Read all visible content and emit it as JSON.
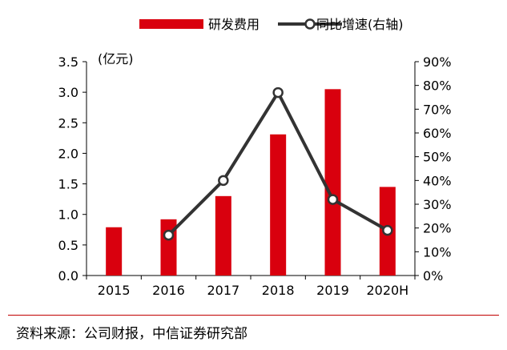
{
  "chart_data": {
    "type": "bar",
    "categories": [
      "2015",
      "2016",
      "2017",
      "2018",
      "2019",
      "2020H"
    ],
    "series": [
      {
        "name": "研发费用",
        "type": "bar",
        "axis": "left",
        "color": "#d9000e",
        "values": [
          0.79,
          0.92,
          1.3,
          2.31,
          3.05,
          1.45
        ]
      },
      {
        "name": "同比增速(右轴)",
        "type": "line",
        "axis": "right",
        "color": "#333333",
        "marker": "open-circle",
        "values": [
          null,
          17.0,
          40.0,
          77.0,
          32.0,
          19.0
        ]
      }
    ],
    "left_axis": {
      "label": "(亿元)",
      "ylim": [
        0,
        3.5
      ],
      "ticks": [
        "0.0",
        "0.5",
        "1.0",
        "1.5",
        "2.0",
        "2.5",
        "3.0",
        "3.5"
      ]
    },
    "right_axis": {
      "ylim": [
        0,
        90
      ],
      "ticks": [
        "0%",
        "10%",
        "20%",
        "30%",
        "40%",
        "50%",
        "60%",
        "70%",
        "80%",
        "90%"
      ]
    },
    "grid": false,
    "legend_position": "top-center"
  },
  "source": "资料来源：公司财报，中信证券研究部"
}
